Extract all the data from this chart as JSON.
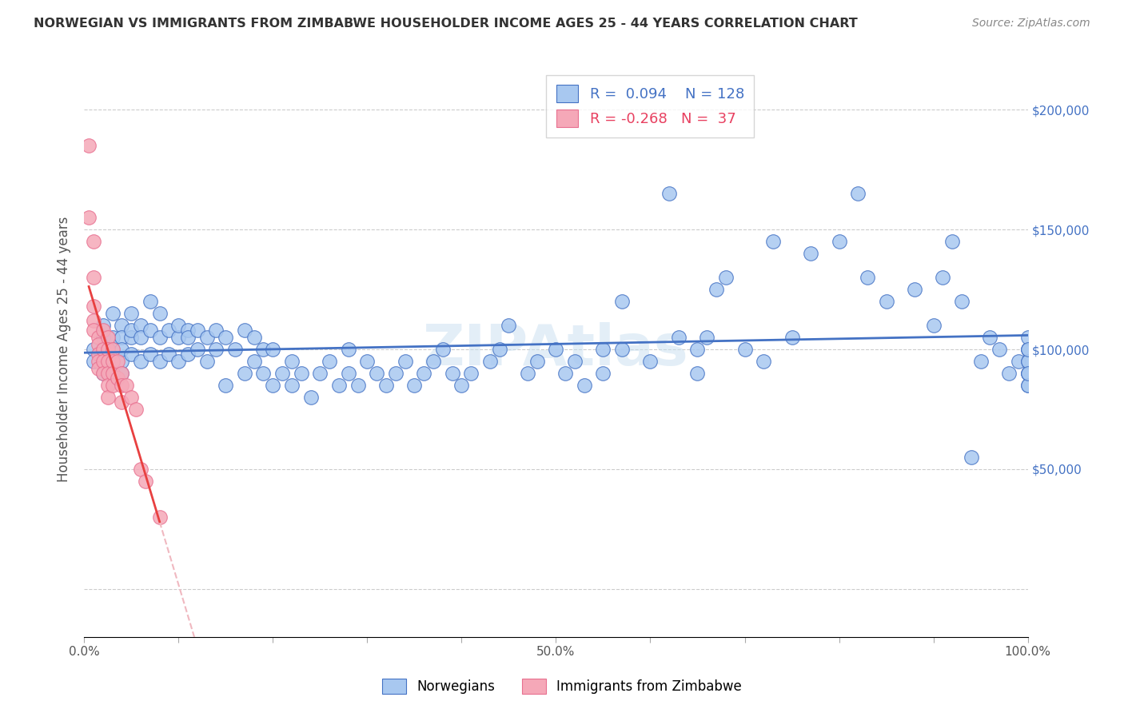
{
  "title": "NORWEGIAN VS IMMIGRANTS FROM ZIMBABWE HOUSEHOLDER INCOME AGES 25 - 44 YEARS CORRELATION CHART",
  "source": "Source: ZipAtlas.com",
  "ylabel": "Householder Income Ages 25 - 44 years",
  "legend_norwegian": "Norwegians",
  "legend_zimbabwe": "Immigrants from Zimbabwe",
  "R_norwegian": 0.094,
  "N_norwegian": 128,
  "R_zimbabwe": -0.268,
  "N_zimbabwe": 37,
  "color_norwegian": "#a8c8f0",
  "color_zimbabwe": "#f5a8b8",
  "edge_norwegian": "#4472c4",
  "edge_zimbabwe": "#e87090",
  "line_color_norwegian": "#4472c4",
  "line_color_zimbabwe": "#e84040",
  "line_color_zimbabwe_dash": "#f0b8c0",
  "background_color": "#ffffff",
  "watermark": "ZIPAtlas",
  "xlim": [
    0.0,
    1.0
  ],
  "ylim": [
    -20000,
    220000
  ],
  "yticks": [
    0,
    50000,
    100000,
    150000,
    200000
  ],
  "ytick_labels": [
    "",
    "$50,000",
    "$100,000",
    "$150,000",
    "$200,000"
  ],
  "xticks": [
    0.0,
    0.1,
    0.2,
    0.3,
    0.4,
    0.5,
    0.6,
    0.7,
    0.8,
    0.9,
    1.0
  ],
  "xtick_labels": [
    "0.0%",
    "",
    "",
    "",
    "",
    "50.0%",
    "",
    "",
    "",
    "",
    "100.0%"
  ],
  "nor_x": [
    0.01,
    0.01,
    0.02,
    0.02,
    0.02,
    0.03,
    0.03,
    0.03,
    0.03,
    0.03,
    0.04,
    0.04,
    0.04,
    0.04,
    0.04,
    0.05,
    0.05,
    0.05,
    0.05,
    0.06,
    0.06,
    0.06,
    0.07,
    0.07,
    0.07,
    0.08,
    0.08,
    0.08,
    0.09,
    0.09,
    0.1,
    0.1,
    0.1,
    0.11,
    0.11,
    0.11,
    0.12,
    0.12,
    0.13,
    0.13,
    0.14,
    0.14,
    0.15,
    0.15,
    0.16,
    0.17,
    0.17,
    0.18,
    0.18,
    0.19,
    0.19,
    0.2,
    0.2,
    0.21,
    0.22,
    0.22,
    0.23,
    0.24,
    0.25,
    0.26,
    0.27,
    0.28,
    0.28,
    0.29,
    0.3,
    0.31,
    0.32,
    0.33,
    0.34,
    0.35,
    0.36,
    0.37,
    0.38,
    0.39,
    0.4,
    0.41,
    0.43,
    0.44,
    0.45,
    0.47,
    0.48,
    0.5,
    0.51,
    0.52,
    0.53,
    0.55,
    0.55,
    0.57,
    0.57,
    0.6,
    0.62,
    0.63,
    0.65,
    0.65,
    0.66,
    0.67,
    0.68,
    0.7,
    0.72,
    0.73,
    0.75,
    0.77,
    0.8,
    0.82,
    0.83,
    0.85,
    0.88,
    0.9,
    0.91,
    0.92,
    0.93,
    0.94,
    0.95,
    0.96,
    0.97,
    0.98,
    0.99,
    1.0,
    1.0,
    1.0,
    1.0,
    1.0,
    1.0,
    1.0,
    1.0,
    1.0,
    1.0,
    1.0
  ],
  "nor_y": [
    100000,
    95000,
    105000,
    90000,
    110000,
    95000,
    105000,
    100000,
    90000,
    115000,
    110000,
    95000,
    105000,
    100000,
    90000,
    115000,
    105000,
    98000,
    108000,
    110000,
    95000,
    105000,
    120000,
    108000,
    98000,
    115000,
    105000,
    95000,
    108000,
    98000,
    105000,
    95000,
    110000,
    108000,
    98000,
    105000,
    100000,
    108000,
    105000,
    95000,
    100000,
    108000,
    85000,
    105000,
    100000,
    90000,
    108000,
    95000,
    105000,
    100000,
    90000,
    85000,
    100000,
    90000,
    95000,
    85000,
    90000,
    80000,
    90000,
    95000,
    85000,
    90000,
    100000,
    85000,
    95000,
    90000,
    85000,
    90000,
    95000,
    85000,
    90000,
    95000,
    100000,
    90000,
    85000,
    90000,
    95000,
    100000,
    110000,
    90000,
    95000,
    100000,
    90000,
    95000,
    85000,
    100000,
    90000,
    120000,
    100000,
    95000,
    165000,
    105000,
    100000,
    90000,
    105000,
    125000,
    130000,
    100000,
    95000,
    145000,
    105000,
    140000,
    145000,
    165000,
    130000,
    120000,
    125000,
    110000,
    130000,
    145000,
    120000,
    55000,
    95000,
    105000,
    100000,
    90000,
    95000,
    100000,
    85000,
    90000,
    95000,
    100000,
    105000,
    90000,
    95000,
    100000,
    85000,
    90000
  ],
  "zim_x": [
    0.005,
    0.005,
    0.01,
    0.01,
    0.01,
    0.01,
    0.01,
    0.015,
    0.015,
    0.015,
    0.015,
    0.015,
    0.02,
    0.02,
    0.02,
    0.02,
    0.025,
    0.025,
    0.025,
    0.025,
    0.025,
    0.025,
    0.03,
    0.03,
    0.03,
    0.03,
    0.035,
    0.035,
    0.04,
    0.04,
    0.04,
    0.045,
    0.05,
    0.055,
    0.06,
    0.065,
    0.08
  ],
  "zim_y": [
    185000,
    155000,
    145000,
    130000,
    118000,
    112000,
    108000,
    105000,
    102000,
    98000,
    95000,
    92000,
    108000,
    100000,
    95000,
    90000,
    105000,
    100000,
    95000,
    90000,
    85000,
    80000,
    100000,
    95000,
    90000,
    85000,
    95000,
    88000,
    90000,
    85000,
    78000,
    85000,
    80000,
    75000,
    50000,
    45000,
    30000
  ]
}
